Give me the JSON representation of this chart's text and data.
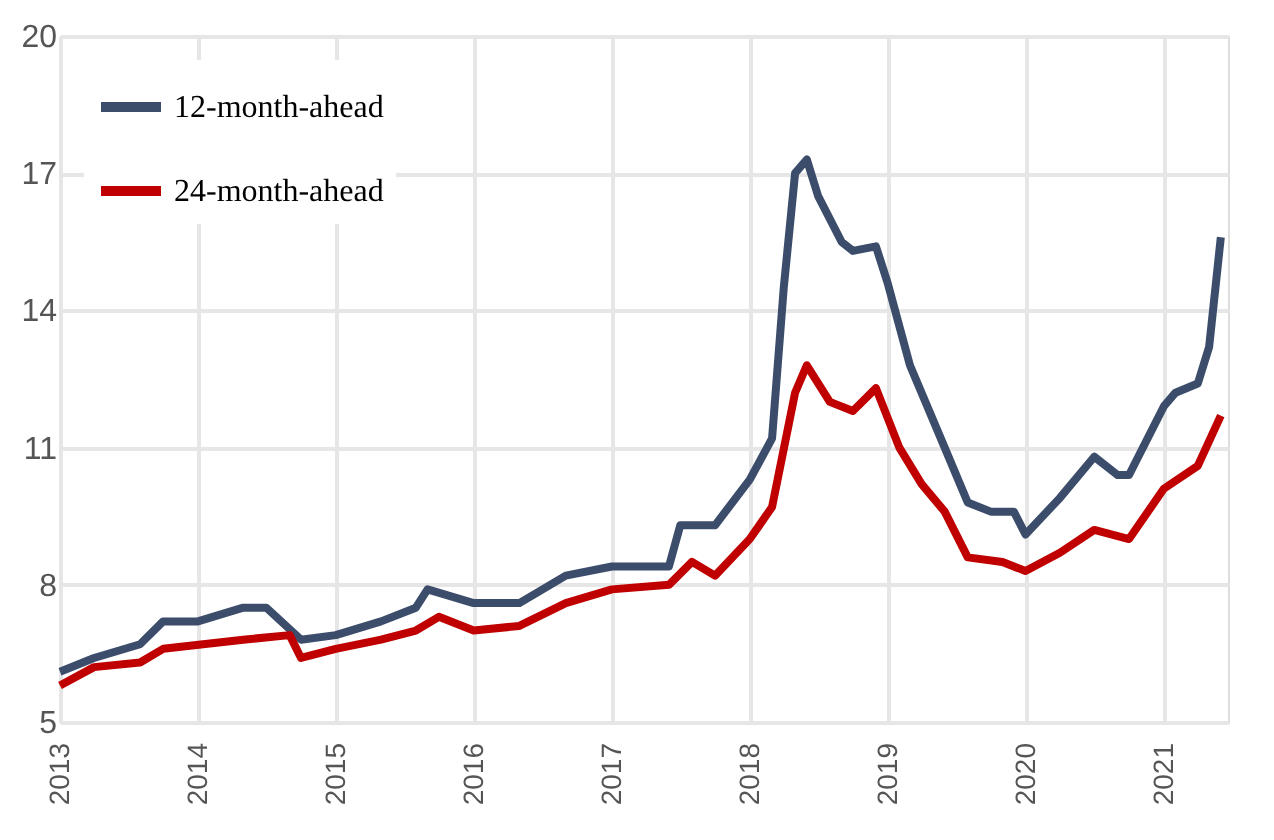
{
  "chart_data": {
    "type": "line",
    "xlim": [
      "2013-01-01",
      "2021-06-20"
    ],
    "xticks": [
      "2013",
      "2014",
      "2015",
      "2016",
      "2017",
      "2018",
      "2019",
      "2020",
      "2021"
    ],
    "ylim": [
      5,
      20
    ],
    "yticks": [
      5,
      8,
      11,
      14,
      17,
      20
    ],
    "grid": true,
    "legend": "top left",
    "line_style": "solid",
    "marker": "none",
    "series": [
      {
        "name": "12-month-ahead",
        "color": "#3c4d6b",
        "x": [
          "2013-01",
          "2013-04",
          "2013-08",
          "2013-10",
          "2014-01",
          "2014-05",
          "2014-07",
          "2014-10",
          "2015-01",
          "2015-05",
          "2015-08",
          "2015-09",
          "2016-01",
          "2016-05",
          "2016-09",
          "2017-01",
          "2017-06",
          "2017-07",
          "2017-10",
          "2018-01",
          "2018-03",
          "2018-04",
          "2018-05",
          "2018-06",
          "2018-07",
          "2018-09",
          "2018-10",
          "2018-12",
          "2019-01",
          "2019-03",
          "2019-06",
          "2019-08",
          "2019-10",
          "2019-12",
          "2020-01",
          "2020-04",
          "2020-07",
          "2020-09",
          "2020-10",
          "2021-01",
          "2021-02",
          "2021-04",
          "2021-05",
          "2021-06"
        ],
        "values": [
          6.1,
          6.4,
          6.7,
          7.2,
          7.2,
          7.5,
          7.5,
          6.8,
          6.9,
          7.2,
          7.5,
          7.9,
          7.6,
          7.6,
          8.2,
          8.4,
          8.4,
          9.3,
          9.3,
          10.3,
          11.2,
          14.5,
          17.0,
          17.3,
          16.5,
          15.5,
          15.3,
          15.4,
          14.6,
          12.8,
          11.0,
          9.8,
          9.6,
          9.6,
          9.1,
          9.9,
          10.8,
          10.4,
          10.4,
          11.9,
          12.2,
          12.4,
          13.2,
          15.6
        ]
      },
      {
        "name": "24-month-ahead",
        "color": "#c00000",
        "x": [
          "2013-01",
          "2013-04",
          "2013-08",
          "2013-10",
          "2014-05",
          "2014-09",
          "2014-10",
          "2015-01",
          "2015-05",
          "2015-08",
          "2015-10",
          "2016-01",
          "2016-05",
          "2016-09",
          "2017-01",
          "2017-06",
          "2017-08",
          "2017-10",
          "2018-01",
          "2018-03",
          "2018-05",
          "2018-06",
          "2018-08",
          "2018-10",
          "2018-12",
          "2019-02",
          "2019-04",
          "2019-06",
          "2019-08",
          "2019-11",
          "2020-01",
          "2020-04",
          "2020-07",
          "2020-10",
          "2021-01",
          "2021-04",
          "2021-06"
        ],
        "values": [
          5.8,
          6.2,
          6.3,
          6.6,
          6.8,
          6.9,
          6.4,
          6.6,
          6.8,
          7.0,
          7.3,
          7.0,
          7.1,
          7.6,
          7.9,
          8.0,
          8.5,
          8.2,
          9.0,
          9.7,
          12.2,
          12.8,
          12.0,
          11.8,
          12.3,
          11.0,
          10.2,
          9.6,
          8.6,
          8.5,
          8.3,
          8.7,
          9.2,
          9.0,
          10.1,
          10.6,
          11.7
        ]
      }
    ]
  }
}
